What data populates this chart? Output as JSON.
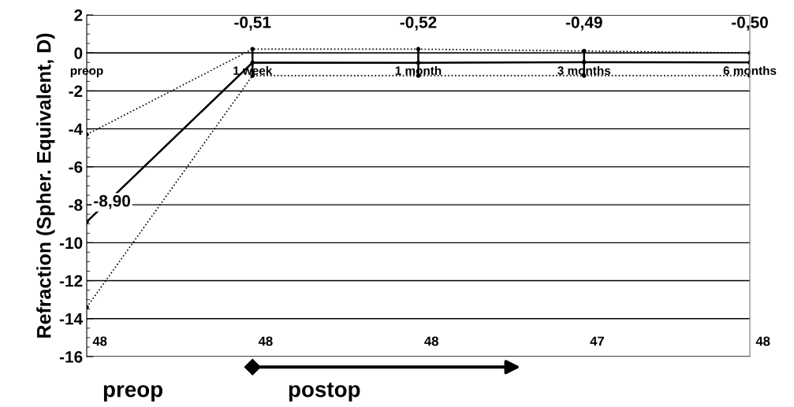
{
  "chart_data": {
    "type": "line",
    "ylabel": "Refraction (Spher. Equivalent, D)",
    "categories": [
      "preop",
      "1 week",
      "1 month",
      "3 months",
      "6 months"
    ],
    "series": [
      {
        "color": "#000000",
        "values": [
          -8.9,
          -0.51,
          -0.52,
          -0.49,
          -0.5
        ],
        "value_labels": [
          "-8,90",
          "-0,51",
          "-0,52",
          "-0,49",
          "-0,50"
        ],
        "errors": [
          null,
          [
            -1.2,
            0.2
          ],
          [
            -1.2,
            0.2
          ],
          [
            -1.2,
            0.1
          ],
          [
            -1.2,
            0.0
          ]
        ],
        "line_style": "solid"
      },
      {
        "color": "#000000",
        "values": [
          -4.3,
          0.2,
          0.2,
          0.1,
          0.0
        ],
        "line_style": "dotted"
      },
      {
        "color": "#000000",
        "values": [
          -13.4,
          -1.2,
          -1.2,
          -1.2,
          -1.2
        ],
        "line_style": "dotted"
      }
    ],
    "ylim": [
      -16,
      2
    ],
    "yticks": [
      {
        "value": -16,
        "label": "-16"
      },
      {
        "value": -14,
        "label": "-14"
      },
      {
        "value": -12,
        "label": "-12"
      },
      {
        "value": -10,
        "label": "-10"
      },
      {
        "value": -8,
        "label": "-8"
      },
      {
        "value": -6,
        "label": "-6"
      },
      {
        "value": -4,
        "label": "-4"
      },
      {
        "value": -2,
        "label": "-2"
      },
      0,
      2
    ],
    "grid": "y",
    "marker": "circle",
    "annotations": [
      "48",
      "48",
      "48",
      "47",
      "48",
      "preop",
      "postop"
    ]
  }
}
